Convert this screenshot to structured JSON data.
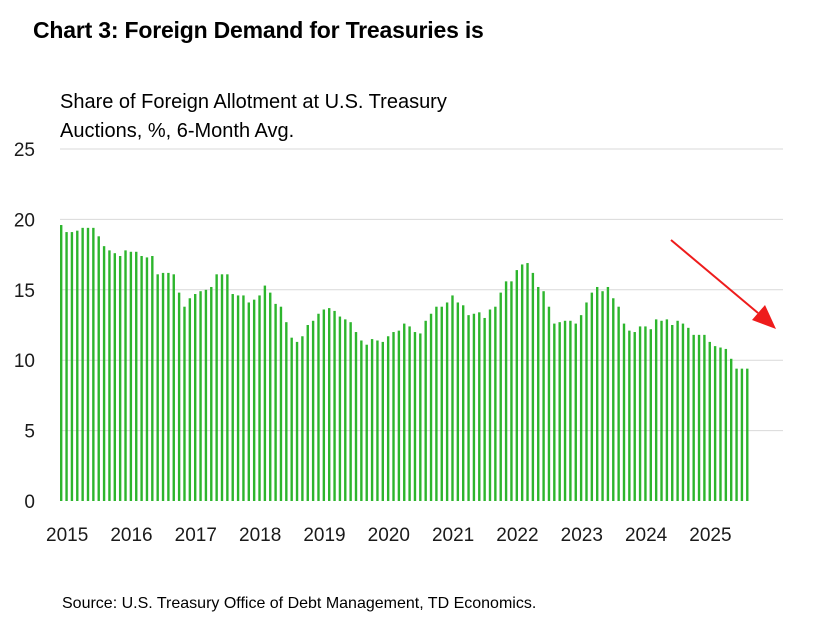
{
  "chart_data": {
    "type": "bar",
    "title": "Chart 3: Foreign Demand for Treasuries is",
    "subtitle_lines": [
      "Share of Foreign Allotment at U.S. Treasury",
      "Auctions, %, 6-Month Avg."
    ],
    "source": "Source: U.S. Treasury Office of Debt Management, TD Economics.",
    "xlabel": "",
    "ylabel": "",
    "ylim": [
      0,
      25
    ],
    "y_ticks": [
      "0",
      "5",
      "10",
      "15",
      "20",
      "25"
    ],
    "x_ticks": [
      "2015",
      "2016",
      "2017",
      "2018",
      "2019",
      "2020",
      "2021",
      "2022",
      "2023",
      "2024",
      "2025"
    ],
    "grid": true,
    "bar_color": "#2db52d",
    "grid_color": "#d9d9d9",
    "annotation_arrow_color": "#ee1c1c",
    "annotation": "red arrow pointing down toward recent values",
    "series": [
      {
        "name": "Share of Foreign Allotment (6-Month Avg., %)",
        "start": "2015-01",
        "values": [
          19.6,
          19.1,
          19.1,
          19.2,
          19.4,
          19.4,
          19.4,
          18.8,
          18.1,
          17.8,
          17.6,
          17.4,
          17.8,
          17.7,
          17.7,
          17.4,
          17.3,
          17.4,
          16.1,
          16.2,
          16.2,
          16.1,
          14.8,
          13.8,
          14.4,
          14.7,
          14.9,
          15.0,
          15.2,
          16.1,
          16.1,
          16.1,
          14.7,
          14.6,
          14.6,
          14.1,
          14.3,
          14.6,
          15.3,
          14.8,
          14.0,
          13.8,
          12.7,
          11.6,
          11.3,
          11.7,
          12.5,
          12.8,
          13.3,
          13.6,
          13.7,
          13.5,
          13.1,
          12.9,
          12.7,
          12.0,
          11.4,
          11.1,
          11.5,
          11.4,
          11.3,
          11.7,
          12.0,
          12.1,
          12.6,
          12.4,
          12.0,
          11.9,
          12.8,
          13.3,
          13.8,
          13.8,
          14.1,
          14.6,
          14.1,
          13.9,
          13.2,
          13.3,
          13.4,
          13.0,
          13.6,
          13.8,
          14.8,
          15.6,
          15.6,
          16.4,
          16.8,
          16.9,
          16.2,
          15.2,
          14.9,
          13.8,
          12.6,
          12.7,
          12.8,
          12.8,
          12.6,
          13.2,
          14.1,
          14.8,
          15.2,
          14.9,
          15.2,
          14.4,
          13.8,
          12.6,
          12.1,
          12.0,
          12.4,
          12.4,
          12.2,
          12.9,
          12.8,
          12.9,
          12.5,
          12.8,
          12.6,
          12.3,
          11.8,
          11.8,
          11.8,
          11.3,
          11.0,
          10.9,
          10.8,
          10.1,
          9.4,
          9.4,
          9.4
        ]
      }
    ]
  }
}
